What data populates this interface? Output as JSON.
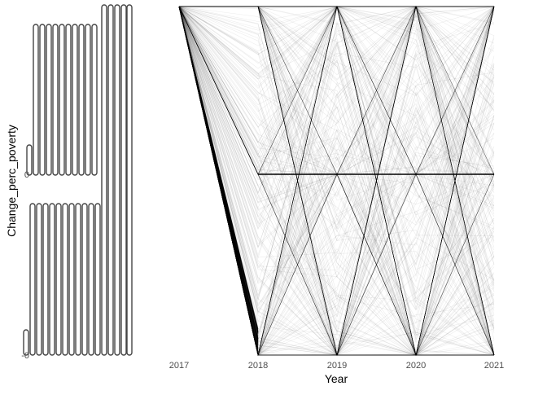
{
  "chart_data": {
    "type": "line",
    "title": "",
    "xlabel": "Year",
    "ylabel": "Change_perc_poverty",
    "x": [
      2017,
      2018,
      2019,
      2020,
      2021
    ],
    "x_tick_labels": [
      "2017",
      "2018",
      "2019",
      "2020",
      "2021"
    ],
    "y_tick_labels": [
      "0",
      "-0"
    ],
    "ylim_relative": [
      -1,
      1
    ],
    "grid": false,
    "legend": "none",
    "series_description": "Thousands of semi-transparent black lines, one per region, each starting at the top at 2017 and connecting values for 2018–2021; many lines zig-zag between the top and bottom extremes, and a dense band converges at 0 from 2018 onward.",
    "series_style": {
      "color": "#000000",
      "opacity": 0.08
    },
    "dense_zero_band": {
      "from": 2018,
      "to": 2021,
      "value": 0
    },
    "y_axis_label_strip": "Overlapping tick labels form a dark vertical block of stacked 0/-0 labels on the left."
  }
}
